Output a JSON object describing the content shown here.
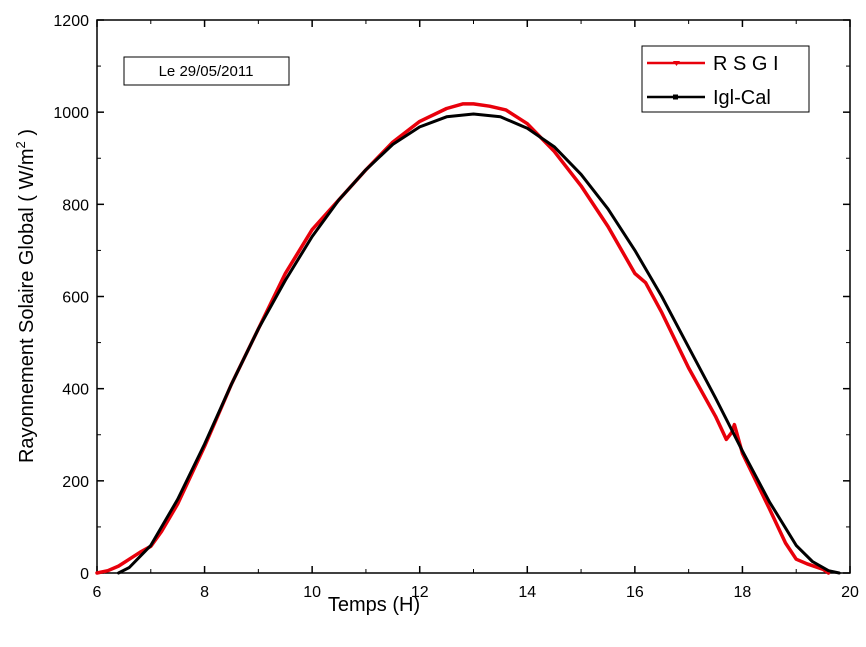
{
  "chart_data": {
    "type": "line",
    "title": "",
    "xlabel": "Temps (H)",
    "ylabel_main": "Rayonnement Solaire Global ( W/m",
    "ylabel_sup": "2",
    "ylabel_end": " )",
    "xlim": [
      6,
      20
    ],
    "ylim": [
      0,
      1200
    ],
    "xticks": [
      6,
      8,
      10,
      12,
      14,
      16,
      18,
      20
    ],
    "yticks": [
      0,
      200,
      400,
      600,
      800,
      1000,
      1200
    ],
    "grid": false,
    "legend_position": "top-right",
    "annotation": "Le 29/05/2011",
    "colors": {
      "RSGI": "#e8000b",
      "IglCal": "#000000"
    },
    "series": [
      {
        "name": "R S G I",
        "x": [
          6.0,
          6.2,
          6.4,
          6.6,
          6.8,
          7.0,
          7.2,
          7.5,
          8.0,
          8.5,
          9.0,
          9.5,
          10.0,
          10.5,
          11.0,
          11.5,
          12.0,
          12.5,
          12.8,
          13.0,
          13.3,
          13.6,
          14.0,
          14.5,
          15.0,
          15.5,
          16.0,
          16.2,
          16.5,
          17.0,
          17.5,
          17.6,
          17.7,
          17.8,
          17.85,
          18.0,
          18.5,
          18.8,
          19.0,
          19.2,
          19.5,
          19.6
        ],
        "y": [
          0,
          5,
          15,
          30,
          45,
          58,
          90,
          150,
          275,
          410,
          530,
          650,
          745,
          810,
          875,
          935,
          980,
          1008,
          1018,
          1018,
          1013,
          1005,
          975,
          915,
          840,
          752,
          650,
          630,
          565,
          445,
          340,
          315,
          290,
          305,
          322,
          260,
          140,
          65,
          30,
          20,
          8,
          0
        ]
      },
      {
        "name": "Igl-Cal",
        "x": [
          6.4,
          6.6,
          7.0,
          7.5,
          8.0,
          8.5,
          9.0,
          9.5,
          10.0,
          10.5,
          11.0,
          11.5,
          12.0,
          12.5,
          13.0,
          13.5,
          14.0,
          14.5,
          15.0,
          15.5,
          16.0,
          16.5,
          17.0,
          17.5,
          18.0,
          18.5,
          19.0,
          19.3,
          19.6,
          19.8
        ],
        "y": [
          0,
          12,
          60,
          160,
          280,
          410,
          530,
          635,
          730,
          810,
          875,
          930,
          968,
          990,
          996,
          990,
          965,
          925,
          865,
          790,
          700,
          600,
          490,
          380,
          265,
          155,
          60,
          25,
          5,
          0
        ]
      }
    ]
  }
}
